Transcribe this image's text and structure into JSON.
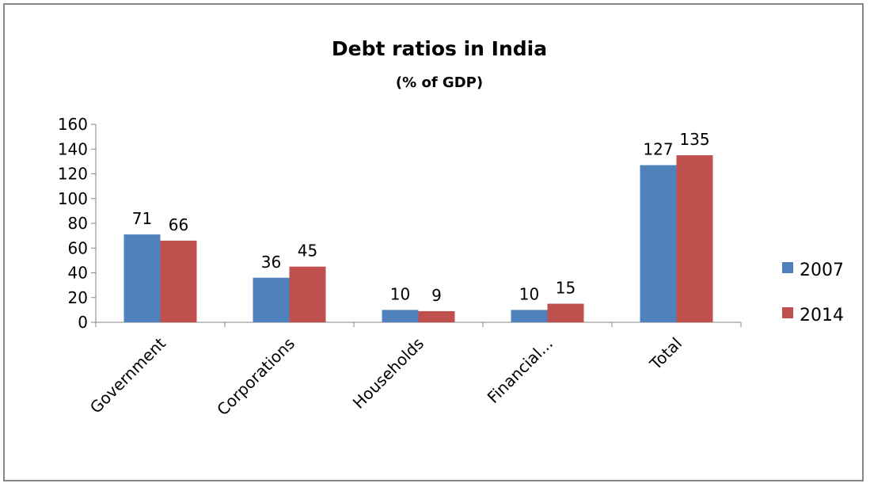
{
  "chart_data": {
    "type": "bar",
    "title": "Debt ratios in India",
    "subtitle": "(% of GDP)",
    "categories": [
      "Government",
      "Corporations",
      "Households",
      "Financial...",
      "Total"
    ],
    "series": [
      {
        "name": "2007",
        "values": [
          71,
          36,
          10,
          10,
          127
        ],
        "color": "#4F81BD"
      },
      {
        "name": "2014",
        "values": [
          66,
          45,
          9,
          15,
          135
        ],
        "color": "#C0504D"
      }
    ],
    "ylim": [
      0,
      160
    ],
    "yticks": [
      0,
      20,
      40,
      60,
      80,
      100,
      120,
      140,
      160
    ],
    "grid": false,
    "legend_position": "right"
  }
}
